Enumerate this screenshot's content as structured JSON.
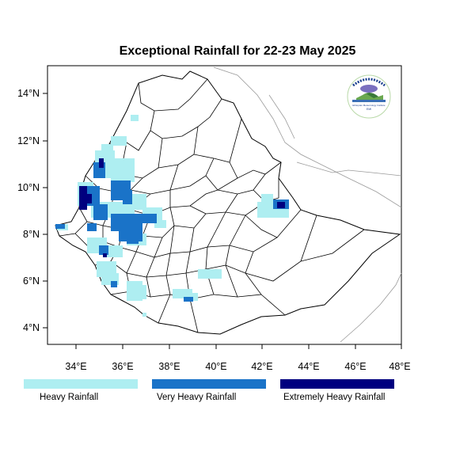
{
  "title": "Exceptional Rainfall for 22-23 May 2025",
  "x_ticks": [
    "34°E",
    "36°E",
    "38°E",
    "40°E",
    "42°E",
    "44°E",
    "46°E",
    "48°E"
  ],
  "y_ticks": [
    "14°N",
    "12°N",
    "10°N",
    "8°N",
    "6°N",
    "4°N"
  ],
  "legend": [
    {
      "label": "Heavy Rainfall",
      "color": "#aeeef1"
    },
    {
      "label": "Very Heavy Rainfall",
      "color": "#1a73c8"
    },
    {
      "label": "Extremely Heavy Rainfall",
      "color": "#00007f"
    }
  ],
  "logo": {
    "text": "Ethiopian Meteorology Institute",
    "subtext": "EMI"
  }
}
